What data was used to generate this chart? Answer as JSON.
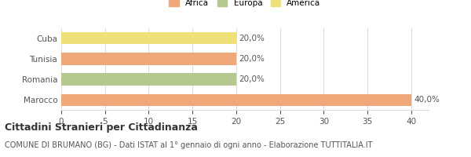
{
  "categories": [
    "Marocco",
    "Romania",
    "Tunisia",
    "Cuba"
  ],
  "values": [
    40,
    20,
    20,
    20
  ],
  "labels": [
    "40,0%",
    "20,0%",
    "20,0%",
    "20,0%"
  ],
  "bar_colors": [
    "#f0a87a",
    "#b5c98e",
    "#f0a87a",
    "#f0e07a"
  ],
  "legend_items": [
    {
      "label": "Africa",
      "color": "#f0a87a"
    },
    {
      "label": "Europa",
      "color": "#b5c98e"
    },
    {
      "label": "America",
      "color": "#f0e07a"
    }
  ],
  "xlim": [
    0,
    42
  ],
  "xticks": [
    0,
    5,
    10,
    15,
    20,
    25,
    30,
    35,
    40
  ],
  "title_bold": "Cittadini Stranieri per Cittadinanza",
  "subtitle": "COMUNE DI BRUMANO (BG) - Dati ISTAT al 1° gennaio di ogni anno - Elaborazione TUTTITALIA.IT",
  "background_color": "#ffffff",
  "grid_color": "#dddddd",
  "label_fontsize": 7.5,
  "tick_fontsize": 7.5,
  "title_fontsize": 9,
  "subtitle_fontsize": 7
}
